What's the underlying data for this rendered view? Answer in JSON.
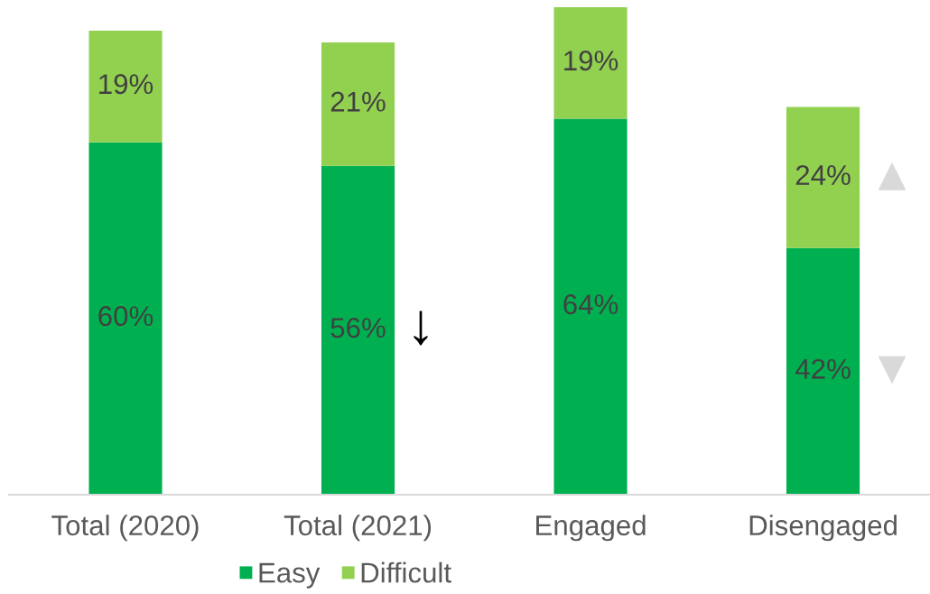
{
  "chart_data": {
    "type": "bar",
    "stacked": true,
    "categories": [
      "Total (2020)",
      "Total (2021)",
      "Engaged",
      "Disengaged"
    ],
    "series": [
      {
        "name": "Easy",
        "color": "#00b050",
        "values": [
          60,
          56,
          64,
          42
        ],
        "value_labels": [
          "60%",
          "56%",
          "64%",
          "42%"
        ]
      },
      {
        "name": "Difficult",
        "color": "#92d050",
        "values": [
          19,
          21,
          19,
          24
        ],
        "value_labels": [
          "19%",
          "21%",
          "19%",
          "24%"
        ]
      }
    ],
    "legend": "bottom",
    "tick_labels": "x",
    "annotations": [
      "↓",
      "▲",
      "▼"
    ]
  }
}
